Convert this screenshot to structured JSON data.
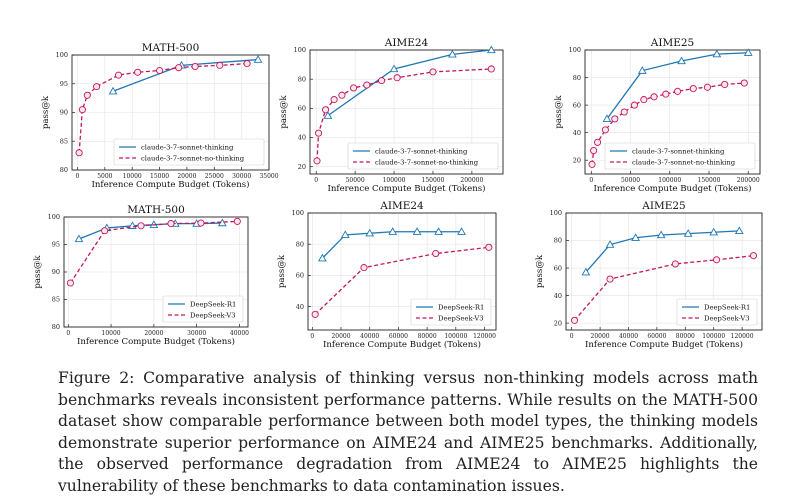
{
  "caption": {
    "label": "Figure 2:",
    "text": "Comparative analysis of thinking versus non-thinking models across math benchmarks reveals inconsistent performance patterns. While results on the MATH-500 dataset show comparable performance between both model types, the thinking models demonstrate superior performance on AIME24 and AIME25 benchmarks. Additionally, the observed performance degradation from AIME24 to AIME25 highlights the vulnerability of these benchmarks to data contamination issues."
  },
  "colors": {
    "blue": "#1f77b4",
    "magenta": "#c2185b"
  },
  "chart_data": [
    {
      "type": "line",
      "title": "MATH-500",
      "xlabel": "Inference Compute Budget (Tokens)",
      "ylabel": "pass@k",
      "xlim": [
        -1000,
        35000
      ],
      "ylim": [
        80,
        100
      ],
      "xticks": [
        0,
        5000,
        10000,
        15000,
        20000,
        25000,
        30000,
        35000
      ],
      "yticks": [
        80,
        85,
        90,
        95,
        100
      ],
      "grid": true,
      "legend": "lower-right",
      "series": [
        {
          "name": "claude-3-7-sonnet-thinking",
          "marker": "triangle",
          "style": "solid",
          "color": "#1f77b4",
          "x": [
            6500,
            19000,
            33000
          ],
          "y": [
            93.7,
            98.2,
            99.2
          ]
        },
        {
          "name": "claude-3-7-sonnet-no-thinking",
          "marker": "circle",
          "style": "dashed",
          "color": "#c2185b",
          "x": [
            300,
            900,
            1800,
            3500,
            7500,
            11000,
            15000,
            18500,
            21500,
            26000,
            31000
          ],
          "y": [
            83.0,
            90.5,
            93.0,
            94.5,
            96.5,
            97.0,
            97.3,
            97.8,
            98.0,
            98.2,
            98.5
          ]
        }
      ]
    },
    {
      "type": "line",
      "title": "AIME24",
      "xlabel": "Inference Compute Budget (Tokens)",
      "ylabel": "pass@k",
      "xlim": [
        -8000,
        240000
      ],
      "ylim": [
        15,
        100
      ],
      "xticks": [
        0,
        50000,
        100000,
        150000,
        200000
      ],
      "yticks": [
        20,
        40,
        60,
        80,
        100
      ],
      "grid": true,
      "legend": "lower-right",
      "series": [
        {
          "name": "claude-3-7-sonnet-thinking",
          "marker": "triangle",
          "style": "solid",
          "color": "#1f77b4",
          "x": [
            15000,
            100000,
            175000,
            225000
          ],
          "y": [
            55,
            87,
            97,
            100
          ]
        },
        {
          "name": "claude-3-7-sonnet-no-thinking",
          "marker": "circle",
          "style": "dashed",
          "color": "#c2185b",
          "x": [
            1000,
            3000,
            12000,
            23000,
            33000,
            48000,
            65000,
            84000,
            104000,
            150000,
            225000
          ],
          "y": [
            24,
            43,
            59,
            66,
            69,
            74,
            76,
            79,
            81,
            85,
            87
          ]
        }
      ]
    },
    {
      "type": "line",
      "title": "AIME25",
      "xlabel": "Inference Compute Budget (Tokens)",
      "ylabel": "pass@k",
      "xlim": [
        -8000,
        215000
      ],
      "ylim": [
        10,
        100
      ],
      "xticks": [
        0,
        50000,
        100000,
        150000,
        200000
      ],
      "yticks": [
        20,
        40,
        60,
        80,
        100
      ],
      "grid": true,
      "legend": "lower-right",
      "series": [
        {
          "name": "claude-3-7-sonnet-thinking",
          "marker": "triangle",
          "style": "solid",
          "color": "#1f77b4",
          "x": [
            20000,
            65000,
            115000,
            160000,
            200000
          ],
          "y": [
            50,
            85,
            92,
            97,
            98
          ]
        },
        {
          "name": "claude-3-7-sonnet-no-thinking",
          "marker": "circle",
          "style": "dashed",
          "color": "#c2185b",
          "x": [
            1000,
            3000,
            8000,
            18000,
            30000,
            42000,
            55000,
            67000,
            80000,
            95000,
            110000,
            130000,
            148000,
            170000,
            195000
          ],
          "y": [
            17,
            27,
            33,
            42,
            50,
            55,
            60,
            64,
            66,
            68,
            70,
            72,
            73,
            75,
            76
          ]
        }
      ]
    },
    {
      "type": "line",
      "title": "MATH-500",
      "xlabel": "Inference Compute Budget (Tokens)",
      "ylabel": "pass@k",
      "xlim": [
        -1000,
        42000
      ],
      "ylim": [
        80,
        100
      ],
      "xticks": [
        0,
        10000,
        20000,
        30000,
        40000
      ],
      "yticks": [
        80,
        85,
        90,
        95,
        100
      ],
      "grid": true,
      "legend": "lower-right",
      "series": [
        {
          "name": "DeepSeek-R1",
          "marker": "triangle",
          "style": "solid",
          "color": "#1f77b4",
          "x": [
            2500,
            9000,
            15000,
            20000,
            25000,
            30000,
            36000
          ],
          "y": [
            96.0,
            98.0,
            98.4,
            98.6,
            98.8,
            98.8,
            98.9
          ]
        },
        {
          "name": "DeepSeek-V3",
          "marker": "circle",
          "style": "dashed",
          "color": "#c2185b",
          "x": [
            500,
            8500,
            17000,
            24000,
            31000,
            39500
          ],
          "y": [
            88.0,
            97.5,
            98.4,
            98.8,
            98.9,
            99.2
          ]
        }
      ]
    },
    {
      "type": "line",
      "title": "AIME24",
      "xlabel": "Inference Compute Budget (Tokens)",
      "ylabel": "pass@k",
      "xlim": [
        -3000,
        128000
      ],
      "ylim": [
        25,
        100
      ],
      "xticks": [
        0,
        20000,
        40000,
        60000,
        80000,
        100000,
        120000
      ],
      "yticks": [
        40,
        60,
        80,
        100
      ],
      "grid": true,
      "legend": "lower-right",
      "series": [
        {
          "name": "DeepSeek-R1",
          "marker": "triangle",
          "style": "solid",
          "color": "#1f77b4",
          "x": [
            7000,
            23000,
            40000,
            56000,
            73000,
            88000,
            104000
          ],
          "y": [
            71,
            86,
            87,
            88,
            88,
            88,
            88
          ]
        },
        {
          "name": "DeepSeek-V3",
          "marker": "circle",
          "style": "dashed",
          "color": "#c2185b",
          "x": [
            2000,
            36000,
            86000,
            123000
          ],
          "y": [
            35,
            65,
            74,
            78
          ]
        }
      ]
    },
    {
      "type": "line",
      "title": "AIME25",
      "xlabel": "Inference Compute Budget (Tokens)",
      "ylabel": "pass@k",
      "xlim": [
        -4000,
        134000
      ],
      "ylim": [
        15,
        100
      ],
      "xticks": [
        0,
        20000,
        40000,
        60000,
        80000,
        100000,
        120000
      ],
      "yticks": [
        20,
        40,
        60,
        80,
        100
      ],
      "grid": true,
      "legend": "lower-right",
      "series": [
        {
          "name": "DeepSeek-R1",
          "marker": "triangle",
          "style": "solid",
          "color": "#1f77b4",
          "x": [
            10000,
            27000,
            45000,
            63000,
            82000,
            100000,
            118000
          ],
          "y": [
            57,
            77,
            82,
            84,
            85,
            86,
            87
          ]
        },
        {
          "name": "DeepSeek-V3",
          "marker": "circle",
          "style": "dashed",
          "color": "#c2185b",
          "x": [
            2000,
            27000,
            73000,
            102000,
            128000
          ],
          "y": [
            22,
            52,
            63,
            66,
            69
          ]
        }
      ]
    }
  ]
}
